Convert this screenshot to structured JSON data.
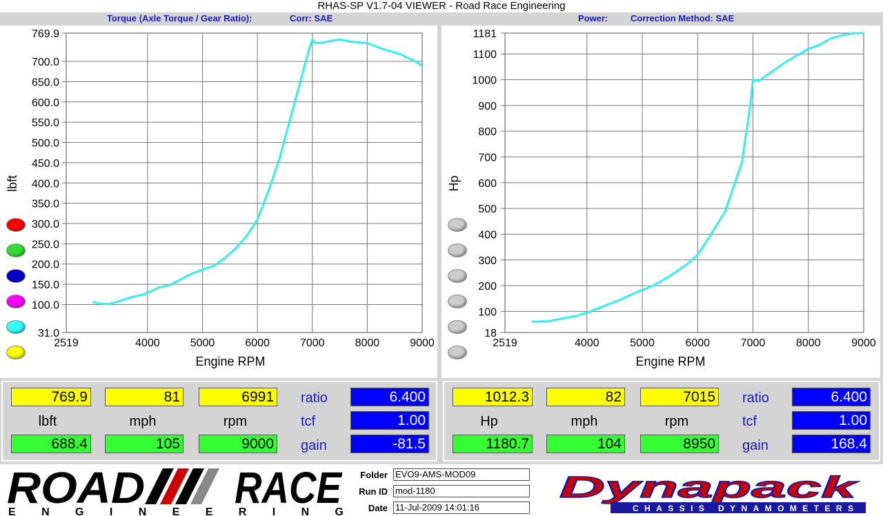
{
  "window": {
    "title": "RHAS-SP V1.7-04  VIEWER - Road Race Engineering"
  },
  "left_header": {
    "label": "Torque (Axle Torque / Gear Ratio):",
    "corr": "Corr: SAE"
  },
  "right_header": {
    "label": "Power:",
    "corr": "Correction Method: SAE"
  },
  "legend_colors": [
    "#ff0000",
    "#33dd33",
    "#0000cc",
    "#ff00ff",
    "#33ffff",
    "#ffff00"
  ],
  "legend_colors_right": [
    "#cccccc",
    "#cccccc",
    "#cccccc",
    "#cccccc",
    "#cccccc",
    "#cccccc"
  ],
  "chart_data": [
    {
      "type": "line",
      "title": "",
      "xlabel": "Engine RPM",
      "ylabel": "lbft",
      "xlim": [
        2519,
        9000
      ],
      "ylim": [
        31.0,
        769.9
      ],
      "xticks": [
        "2519",
        "4000",
        "5000",
        "6000",
        "7000",
        "8000",
        "9000"
      ],
      "yticks": [
        "769.9",
        "700.0",
        "650.0",
        "600.0",
        "550.0",
        "500.0",
        "450.0",
        "400.0",
        "350.0",
        "300.0",
        "250.0",
        "200.0",
        "150.0",
        "100.0",
        "31.0"
      ],
      "grid": true,
      "series_color": "#33f0f0",
      "series": [
        {
          "x": [
            3000,
            3100,
            3300,
            3500,
            3700,
            3900,
            4100,
            4200,
            4400,
            4600,
            4800,
            5000,
            5200,
            5400,
            5600,
            5800,
            6000,
            6200,
            6400,
            6600,
            6800,
            6950,
            7000,
            7050,
            7200,
            7400,
            7500,
            7700,
            8000,
            8300,
            8600,
            8800,
            9000
          ],
          "y": [
            107,
            103,
            101,
            109,
            118,
            124,
            135,
            142,
            148,
            162,
            176,
            186,
            195,
            214,
            238,
            268,
            310,
            380,
            460,
            560,
            660,
            735,
            755,
            745,
            747,
            752,
            754,
            749,
            745,
            730,
            718,
            705,
            690
          ]
        }
      ],
      "marker_color": "#99ff33"
    },
    {
      "type": "line",
      "title": "",
      "xlabel": "Engine RPM",
      "ylabel": "Hp",
      "xlim": [
        2519,
        9000
      ],
      "ylim": [
        18,
        1181
      ],
      "xticks": [
        "2519",
        "4000",
        "5000",
        "6000",
        "7000",
        "8000",
        "9000"
      ],
      "yticks": [
        "1181",
        "1100",
        "1000",
        "900",
        "800",
        "700",
        "600",
        "500",
        "400",
        "300",
        "200",
        "100",
        "18"
      ],
      "grid": true,
      "series_color": "#33f0f0",
      "series": [
        {
          "x": [
            3000,
            3300,
            3500,
            3800,
            4000,
            4300,
            4600,
            4900,
            5200,
            5500,
            5800,
            6000,
            6200,
            6500,
            6800,
            6950,
            7000,
            7100,
            7200,
            7400,
            7600,
            7800,
            8000,
            8200,
            8400,
            8600,
            8800,
            9000
          ],
          "y": [
            60,
            62,
            70,
            82,
            95,
            120,
            145,
            175,
            200,
            238,
            282,
            320,
            385,
            490,
            680,
            900,
            1000,
            995,
            1010,
            1040,
            1070,
            1095,
            1120,
            1135,
            1160,
            1172,
            1180,
            1181
          ]
        }
      ],
      "marker_color": "#99ff33"
    }
  ],
  "readout_left": {
    "top": [
      "769.9",
      "81",
      "6991"
    ],
    "labels": [
      "lbft",
      "mph",
      "rpm"
    ],
    "bottom": [
      "688.4",
      "105",
      "9000"
    ],
    "side_labels": [
      "ratio",
      "tcf",
      "gain"
    ],
    "side_values": [
      "6.400",
      "1.00",
      "-81.5"
    ]
  },
  "readout_right": {
    "top": [
      "1012.3",
      "82",
      "7015"
    ],
    "labels": [
      "Hp",
      "mph",
      "rpm"
    ],
    "bottom": [
      "1180.7",
      "104",
      "8950"
    ],
    "side_labels": [
      "ratio",
      "tcf",
      "gain"
    ],
    "side_values": [
      "6.400",
      "1.00",
      "168.4"
    ]
  },
  "footer": {
    "logo_left": {
      "word1": "ROAD",
      "word2": "RACE",
      "sub": "E N G I N E E R I N G"
    },
    "folder_label": "Folder",
    "folder_value": "EVO9-AMS-MOD09",
    "runid_label": "Run ID",
    "runid_value": "mod-1180",
    "date_label": "Date",
    "date_value": "11-Jul-2009  14:01:16",
    "logo_right": {
      "word": "Dynapack",
      "sub": "CHASSIS DYNAMOMETERS"
    }
  }
}
